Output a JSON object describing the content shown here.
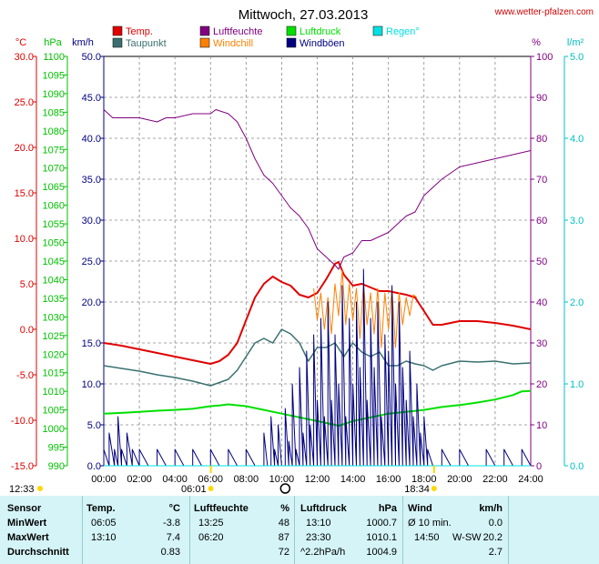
{
  "chart_data": {
    "type": "line",
    "title": "Mittwoch, 27.03.2013",
    "source": "www.wetter-pfalzen.com",
    "x_range": [
      0,
      24
    ],
    "x_ticks": [
      "00:00",
      "02:00",
      "04:00",
      "06:00",
      "08:00",
      "10:00",
      "12:00",
      "14:00",
      "16:00",
      "18:00",
      "20:00",
      "22:00",
      "24:00"
    ],
    "grid": true,
    "axes": {
      "temp": {
        "unit": "°C",
        "range": [
          -15,
          30
        ],
        "ticks": [
          "30.0",
          "25.0",
          "20.0",
          "15.0",
          "10.0",
          "5.0",
          "0.0",
          "-5.0",
          "-10.0",
          "-15.0"
        ]
      },
      "pressure": {
        "unit": "hPa",
        "range": [
          990,
          1100
        ],
        "ticks": [
          "1100",
          "1095",
          "1090",
          "1085",
          "1080",
          "1075",
          "1070",
          "1065",
          "1060",
          "1055",
          "1050",
          "1045",
          "1040",
          "1035",
          "1030",
          "1025",
          "1020",
          "1015",
          "1010",
          "1005",
          "1000",
          "995",
          "990"
        ]
      },
      "wind": {
        "unit": "km/h",
        "range": [
          0,
          50
        ],
        "ticks": [
          "50.0",
          "45.0",
          "40.0",
          "35.0",
          "30.0",
          "25.0",
          "20.0",
          "15.0",
          "10.0",
          "5.0",
          "0.0"
        ]
      },
      "humidity": {
        "unit": "%",
        "range": [
          0,
          100
        ],
        "ticks": [
          "100",
          "90",
          "80",
          "70",
          "60",
          "50",
          "40",
          "30",
          "20",
          "10",
          "0"
        ]
      },
      "rain": {
        "unit": "l/m²",
        "range": [
          0,
          5
        ],
        "ticks": [
          "5.0",
          "4.0",
          "3.0",
          "2.0",
          "1.0",
          "0.0"
        ]
      }
    },
    "legend": [
      {
        "name": "Temp.",
        "color": "#e00000"
      },
      {
        "name": "Luftfeuchte",
        "color": "#800080"
      },
      {
        "name": "Luftdruck",
        "color": "#00e000"
      },
      {
        "name": "Regen°",
        "color": "#00e0e0"
      },
      {
        "name": "Taupunkt",
        "color": "#3a7070"
      },
      {
        "name": "Windchill",
        "color": "#ff8000"
      },
      {
        "name": "Windböen",
        "color": "#000080"
      }
    ],
    "series": [
      {
        "name": "Temp.",
        "axis": "temp",
        "color": "#e00000",
        "x": [
          0,
          1,
          2,
          3,
          4,
          5,
          6,
          6.5,
          7,
          7.5,
          8,
          8.5,
          9,
          9.5,
          10,
          10.5,
          11,
          11.5,
          12,
          12.5,
          13,
          13.2,
          13.5,
          14,
          14.5,
          15,
          15.5,
          16,
          16.5,
          17,
          17.5,
          18,
          18.5,
          19,
          20,
          21,
          22,
          23,
          24
        ],
        "y": [
          -1.5,
          -1.8,
          -2.2,
          -2.6,
          -3.0,
          -3.4,
          -3.8,
          -3.5,
          -2.8,
          -1.5,
          1.0,
          3.5,
          5.0,
          5.8,
          5.2,
          4.8,
          3.8,
          3.5,
          4.0,
          5.5,
          7.2,
          7.4,
          6.0,
          4.8,
          5.0,
          4.6,
          4.2,
          4.2,
          4.0,
          3.8,
          3.5,
          2.0,
          0.5,
          0.5,
          0.9,
          0.9,
          0.7,
          0.4,
          0.0
        ]
      },
      {
        "name": "Taupunkt",
        "axis": "temp",
        "color": "#3a7070",
        "x": [
          0,
          1,
          2,
          3,
          4,
          5,
          6,
          7,
          7.5,
          8,
          8.5,
          9,
          9.5,
          10,
          10.5,
          11,
          11.5,
          12,
          12.5,
          13,
          13.5,
          14,
          14.5,
          15,
          15.5,
          16,
          16.5,
          17,
          17.5,
          18,
          18.5,
          19,
          20,
          21,
          22,
          23,
          24
        ],
        "y": [
          -4.0,
          -4.3,
          -4.6,
          -5.0,
          -5.3,
          -5.7,
          -6.2,
          -5.5,
          -4.5,
          -3.0,
          -1.5,
          -1.0,
          -1.5,
          0.0,
          -0.5,
          -1.5,
          -3.5,
          -2.0,
          -2.0,
          -1.5,
          -3.0,
          -1.5,
          -2.5,
          -3.0,
          -2.5,
          -4.0,
          -4.0,
          -3.5,
          -3.8,
          -4.0,
          -4.5,
          -4.0,
          -3.5,
          -3.6,
          -3.5,
          -3.8,
          -3.7
        ]
      },
      {
        "name": "Windchill",
        "axis": "temp",
        "color": "#ff8000",
        "x": [
          11.8,
          12.0,
          12.2,
          12.4,
          12.6,
          12.8,
          13.0,
          13.2,
          13.4,
          13.6,
          13.8,
          14.0,
          14.2,
          14.4,
          14.6,
          14.8,
          15.0,
          15.2,
          15.4,
          15.6,
          15.8,
          16.0,
          16.2,
          16.4,
          16.6,
          16.8,
          17.0,
          17.2,
          17.4,
          17.6
        ],
        "y": [
          4.5,
          1.0,
          4.0,
          0.0,
          3.5,
          -0.5,
          5.0,
          1.5,
          6.5,
          0.5,
          5.0,
          1.0,
          4.5,
          -1.0,
          5.0,
          0.5,
          4.0,
          -0.5,
          4.5,
          -2.0,
          4.0,
          0.0,
          4.5,
          -2.0,
          4.0,
          0.5,
          3.5,
          1.5,
          3.8,
          3.5
        ]
      },
      {
        "name": "Luftdruck",
        "axis": "pressure",
        "color": "#00e000",
        "x": [
          0,
          1,
          2,
          3,
          4,
          5,
          6,
          6.5,
          7,
          8,
          9,
          10,
          11,
          12,
          13,
          13.2,
          14,
          15,
          16,
          17,
          18,
          19,
          20,
          21,
          22,
          23,
          23.5,
          24
        ],
        "y": [
          1004.0,
          1004.2,
          1004.5,
          1004.8,
          1005.0,
          1005.3,
          1006.0,
          1006.2,
          1006.5,
          1006.0,
          1005.0,
          1004.0,
          1003.0,
          1002.0,
          1001.0,
          1000.7,
          1002.0,
          1003.0,
          1004.0,
          1004.5,
          1005.0,
          1005.8,
          1006.3,
          1007.0,
          1007.8,
          1009.0,
          1010.0,
          1010.1
        ]
      },
      {
        "name": "Luftfeuchte",
        "axis": "humidity",
        "color": "#800080",
        "x": [
          0,
          0.5,
          1,
          2,
          3,
          3.5,
          4,
          5,
          6,
          6.3,
          7,
          7.5,
          8,
          8.5,
          9,
          9.5,
          10,
          10.5,
          11,
          11.5,
          12,
          12.5,
          13,
          13.2,
          13.5,
          14,
          14.5,
          15,
          15.5,
          16,
          16.5,
          17,
          17.5,
          18,
          18.5,
          19,
          20,
          21,
          22,
          23,
          24
        ],
        "y": [
          87,
          85,
          85,
          85,
          84,
          85,
          85,
          86,
          86,
          87,
          86,
          84,
          80,
          75,
          71,
          69,
          66,
          63,
          61,
          58,
          53,
          51,
          49,
          48,
          51,
          52,
          55,
          55,
          56,
          57,
          59,
          61,
          62,
          66,
          68,
          70,
          73,
          74,
          75,
          76,
          77
        ]
      },
      {
        "name": "Windböen",
        "axis": "wind",
        "color": "#000080",
        "x": [
          0,
          0.3,
          0.6,
          0.8,
          1.0,
          1.3,
          1.6,
          2.0,
          2.5,
          3.0,
          3.5,
          4.0,
          4.5,
          5.0,
          5.5,
          6.0,
          6.5,
          7.0,
          7.5,
          8.0,
          8.5,
          9.0,
          9.2,
          9.4,
          9.6,
          9.8,
          10.0,
          10.2,
          10.4,
          10.6,
          10.8,
          11.0,
          11.2,
          11.4,
          11.6,
          11.8,
          12.0,
          12.2,
          12.4,
          12.6,
          12.8,
          13.0,
          13.2,
          13.4,
          13.6,
          13.8,
          14.0,
          14.2,
          14.4,
          14.6,
          14.8,
          15.0,
          15.2,
          15.4,
          15.6,
          15.8,
          16.0,
          16.2,
          16.4,
          16.6,
          16.8,
          17.0,
          17.2,
          17.4,
          17.6,
          17.8,
          18.0,
          18.2,
          18.5,
          19.0,
          19.5,
          20.0,
          20.5,
          21.0,
          21.5,
          22.0,
          22.5,
          23.0,
          23.5,
          24.0
        ],
        "y": [
          2,
          4,
          2,
          6,
          2,
          4,
          2,
          2,
          0,
          2,
          0,
          2,
          0,
          2,
          0,
          2,
          0,
          2,
          0,
          2,
          0,
          4,
          0,
          6,
          2,
          5,
          0,
          7,
          3,
          10,
          2,
          12,
          4,
          14,
          5,
          16,
          8,
          18,
          6,
          20,
          8,
          16,
          10,
          22,
          6,
          18,
          10,
          20,
          12,
          24,
          8,
          18,
          12,
          20,
          6,
          16,
          14,
          22,
          10,
          20,
          12,
          8,
          14,
          6,
          10,
          4,
          6,
          2,
          0,
          2,
          0,
          2,
          0,
          0,
          2,
          0,
          2,
          0,
          2,
          0
        ]
      },
      {
        "name": "Regen°",
        "axis": "rain",
        "color": "#00e0e0",
        "x": [
          0,
          24
        ],
        "y": [
          0,
          0
        ]
      }
    ],
    "markers": {
      "left_time": "12:33",
      "sunrise": "06:01",
      "sunset": "18:34"
    }
  },
  "stats": {
    "headers": {
      "sensor": "Sensor",
      "temp": "Temp.",
      "temp_unit": "°C",
      "hum": "Luftfeuchte",
      "hum_unit": "%",
      "press": "Luftdruck",
      "press_unit": "hPa",
      "wind": "Wind",
      "wind_unit": "km/h"
    },
    "rows": [
      {
        "label": "MinWert",
        "temp_time": "06:05",
        "temp_val": "-3.8",
        "hum_time": "13:25",
        "hum_val": "48",
        "press_time": "13:10",
        "press_val": "1000.7",
        "wind_time": "Ø 10 min.",
        "wind_dir": "",
        "wind_val": "0.0"
      },
      {
        "label": "MaxWert",
        "temp_time": "13:10",
        "temp_val": "7.4",
        "hum_time": "06:20",
        "hum_val": "87",
        "press_time": "23:30",
        "press_val": "1010.1",
        "wind_time": "14:50",
        "wind_dir": "W-SW",
        "wind_val": "20.2"
      },
      {
        "label": "Durchschnitt",
        "temp_time": "",
        "temp_val": "0.83",
        "hum_time": "",
        "hum_val": "72",
        "press_time": "^2.2hPa/h",
        "press_val": "1004.9",
        "wind_time": "",
        "wind_dir": "",
        "wind_val": "2.7"
      }
    ]
  }
}
